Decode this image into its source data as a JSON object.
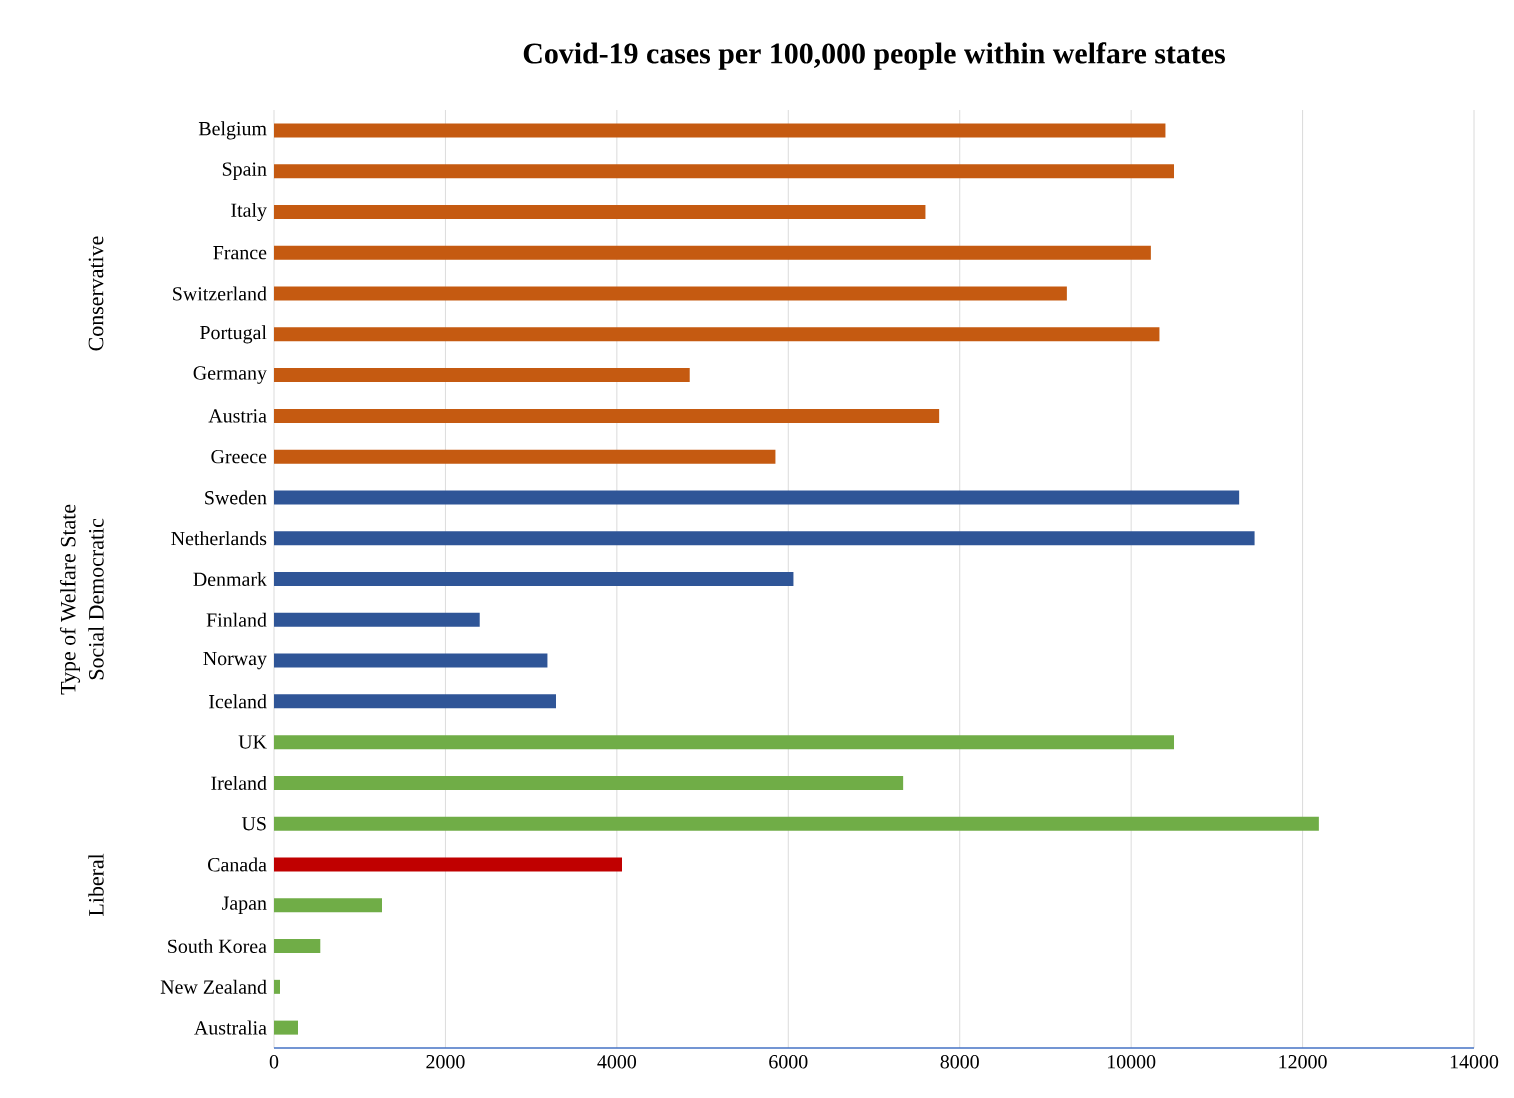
{
  "chart_data": {
    "type": "bar",
    "orientation": "horizontal",
    "title": "Covid-19 cases per 100,000 people within welfare states",
    "ylabel": "Type of Welfare State",
    "annotations": [
      "Conservative",
      "Social Democratic",
      "Liberal"
    ],
    "categories": [
      "Belgium",
      "Spain",
      "Italy",
      "France",
      "Switzerland",
      "Portugal",
      "Germany",
      "Austria",
      "Greece",
      "Sweden",
      "Netherlands",
      "Denmark",
      "Finland",
      "Norway",
      "Iceland",
      "UK",
      "Ireland",
      "US",
      "Canada",
      "Japan",
      "South Korea",
      "New Zealand",
      "Australia"
    ],
    "values": [
      10400,
      10500,
      7600,
      10230,
      9250,
      10330,
      4850,
      7760,
      5850,
      11260,
      11440,
      6060,
      2400,
      3190,
      3290,
      10500,
      7340,
      12190,
      4060,
      1260,
      540,
      70,
      280
    ],
    "colors": [
      "#c55a11",
      "#c55a11",
      "#c55a11",
      "#c55a11",
      "#c55a11",
      "#c55a11",
      "#c55a11",
      "#c55a11",
      "#c55a11",
      "#2f5597",
      "#2f5597",
      "#2f5597",
      "#2f5597",
      "#2f5597",
      "#2f5597",
      "#70ad47",
      "#70ad47",
      "#70ad47",
      "#c00000",
      "#70ad47",
      "#70ad47",
      "#70ad47",
      "#70ad47"
    ],
    "xlim": [
      0,
      14000
    ],
    "xticks": [
      0,
      2000,
      4000,
      6000,
      8000,
      10000,
      12000,
      14000
    ],
    "grid": "x"
  }
}
